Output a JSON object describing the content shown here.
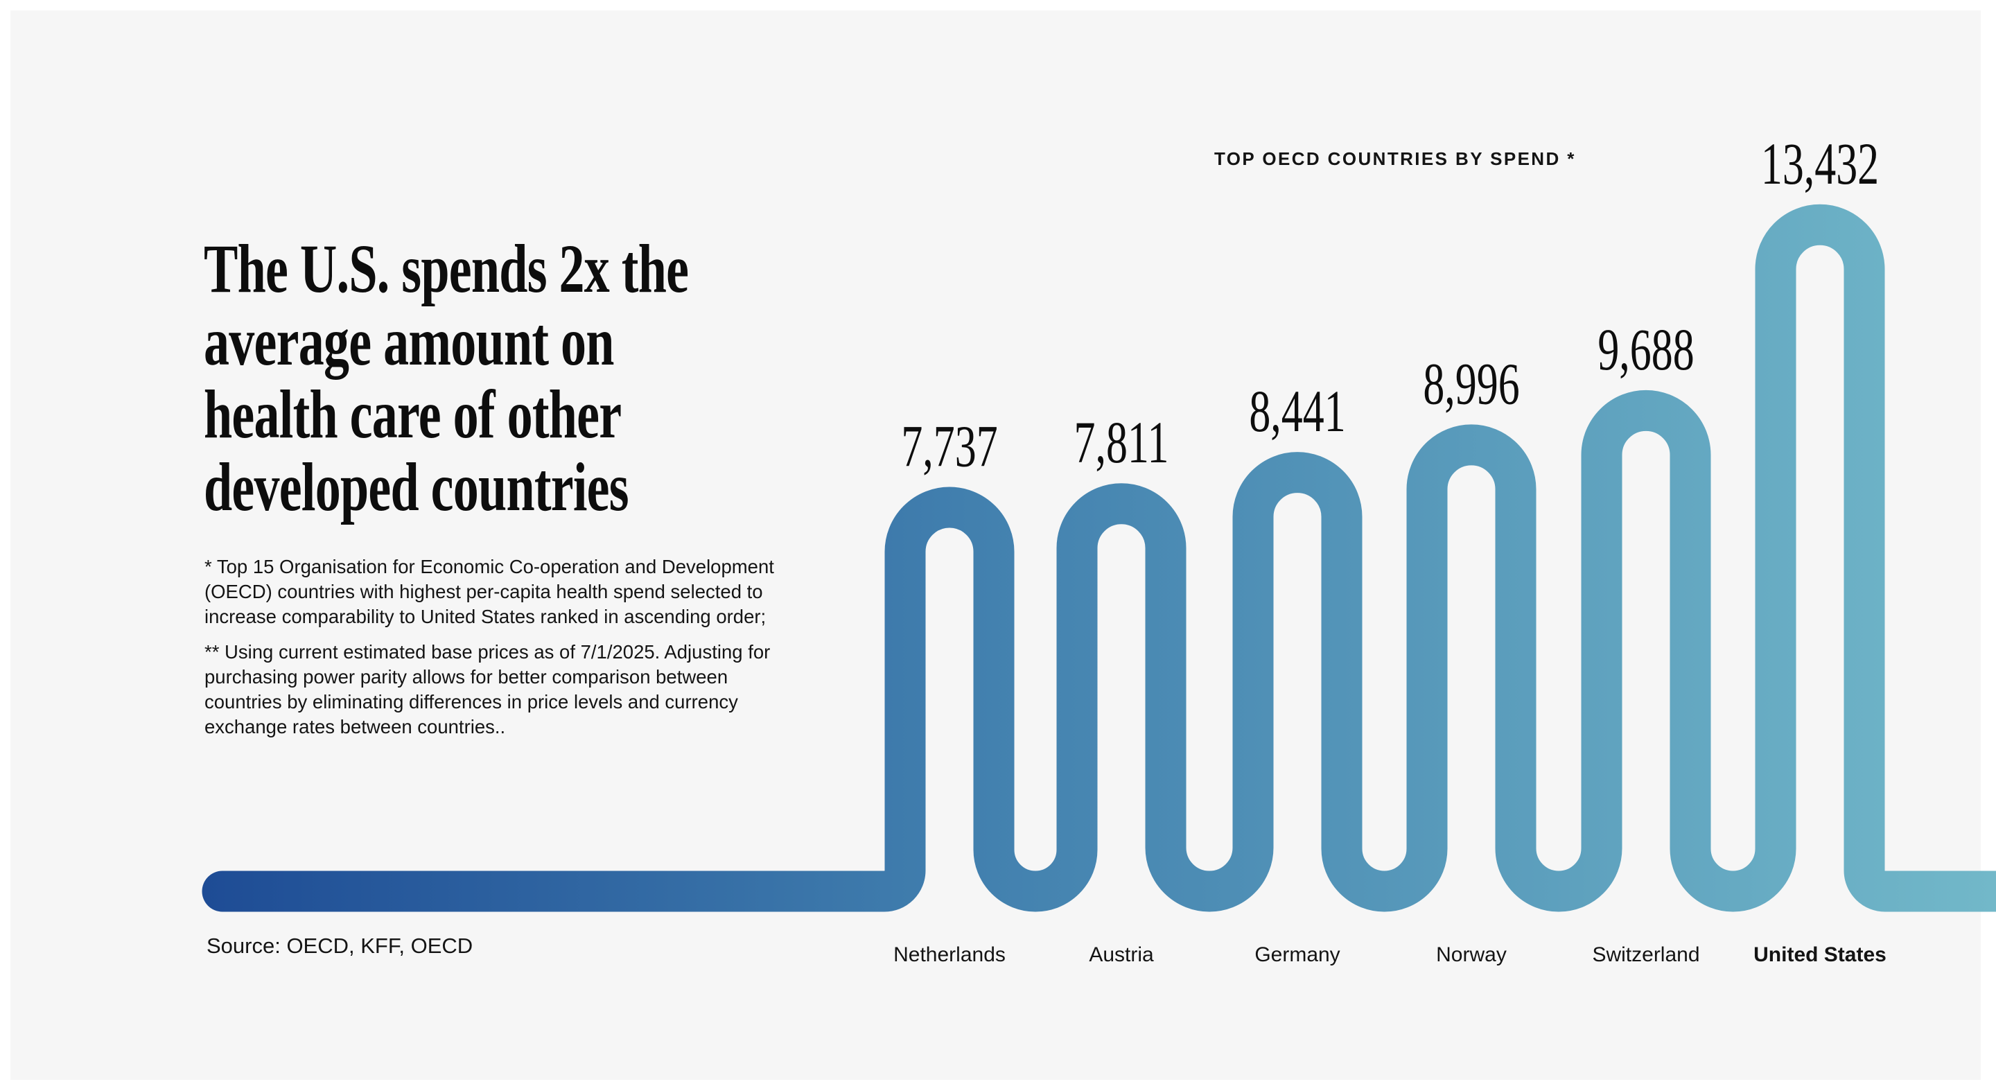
{
  "headline": {
    "lines": [
      "The U.S. spends 2x the",
      "average amount on",
      "health care of other",
      "developed countries"
    ]
  },
  "footnotes": [
    [
      "* Top 15 Organisation for Economic Co-operation and Development",
      "(OECD) countries with highest per-capita health spend selected to",
      "increase comparability to United States ranked in ascending order;"
    ],
    [
      "** Using current estimated base prices as of 7/1/2025.  Adjusting for",
      "purchasing power parity allows for better comparison between",
      "countries by eliminating differences in price levels and currency",
      "exchange rates between countries.."
    ]
  ],
  "source": "Source: OECD, KFF, OECD",
  "chart_data": {
    "type": "line",
    "title": "TOP OECD COUNTRIES BY SPEND *",
    "categories": [
      "Netherlands",
      "Austria",
      "Germany",
      "Norway",
      "Switzerland",
      "United States"
    ],
    "values": [
      7737,
      7811,
      8441,
      8996,
      9688,
      13432
    ],
    "value_labels": [
      "7,737",
      "7,811",
      "8,441",
      "8,996",
      "9,688",
      "13,432"
    ],
    "highlight": "United States",
    "grid": false,
    "gradient_colors": [
      "#1e4c95",
      "#417fae",
      "#72b8c9"
    ]
  }
}
